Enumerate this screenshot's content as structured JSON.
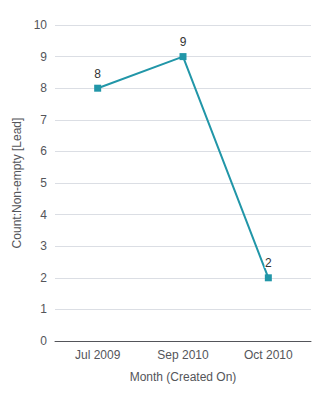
{
  "chart_data": {
    "type": "line",
    "categories": [
      "Jul 2009",
      "Sep 2010",
      "Oct 2010"
    ],
    "values": [
      8,
      9,
      2
    ],
    "color": "#2196a8",
    "marker": "square",
    "xlabel": "Month (Created On)",
    "ylabel": "Count:Non-empty [Lead]",
    "ylim": [
      0,
      10
    ],
    "yticks": [
      0,
      1,
      2,
      3,
      4,
      5,
      6,
      7,
      8,
      9,
      10
    ],
    "grid": true,
    "data_labels": true
  }
}
